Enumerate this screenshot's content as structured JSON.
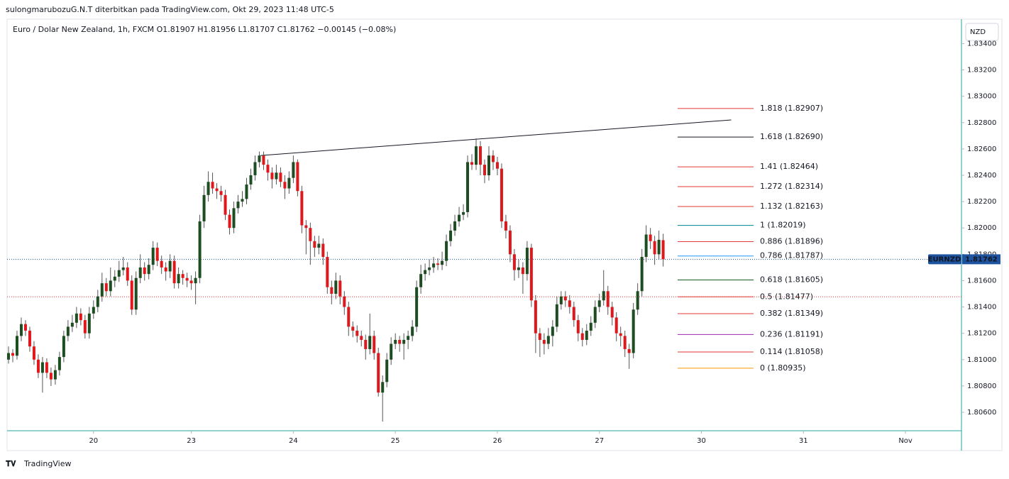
{
  "chart_data": {
    "type": "candlestick",
    "header": "sulongmarubozuG.N.T diterbitkan pada TradingView.com, Okt 29, 2023 11:48 UTC-5",
    "title": "Euro / Dolar New Zealand, 1h, FXCM  O1.81907  H1.81956  L1.81707  C1.81762  −0.00145 (−0.08%)",
    "currency": "NZD",
    "symbol": "EURNZD",
    "brand": "TradingView",
    "up_color": "#1e4d22",
    "down_color": "#e0181b",
    "xlim": [
      -0.333,
      224.17
    ],
    "ylim": [
      1.8046,
      1.8358
    ],
    "xticks": [
      {
        "value": 20,
        "label": "20"
      },
      {
        "value": 43,
        "label": "23"
      },
      {
        "value": 67,
        "label": "24"
      },
      {
        "value": 91,
        "label": "25"
      },
      {
        "value": 115,
        "label": "26"
      },
      {
        "value": 139,
        "label": "27"
      },
      {
        "value": 163,
        "label": "30"
      },
      {
        "value": 187,
        "label": "31"
      },
      {
        "value": 211,
        "label": "Nov"
      }
    ],
    "yticks": [
      {
        "value": 1.834,
        "label": "1.83400"
      },
      {
        "value": 1.832,
        "label": "1.83200"
      },
      {
        "value": 1.83,
        "label": "1.83000"
      },
      {
        "value": 1.828,
        "label": "1.82800"
      },
      {
        "value": 1.826,
        "label": "1.82600"
      },
      {
        "value": 1.824,
        "label": "1.82400"
      },
      {
        "value": 1.822,
        "label": "1.82200"
      },
      {
        "value": 1.82,
        "label": "1.82000"
      },
      {
        "value": 1.818,
        "label": "1.81800"
      },
      {
        "value": 1.816,
        "label": "1.81600"
      },
      {
        "value": 1.814,
        "label": "1.81400"
      },
      {
        "value": 1.812,
        "label": "1.81200"
      },
      {
        "value": 1.81,
        "label": "1.81000"
      },
      {
        "value": 1.808,
        "label": "1.80800"
      },
      {
        "value": 1.806,
        "label": "1.80600"
      }
    ],
    "candles": [
      [
        1.81,
        1.811,
        1.8097,
        1.8105
      ],
      [
        1.8105,
        1.8108,
        1.8098,
        1.8103
      ],
      [
        1.8103,
        1.8122,
        1.81,
        1.8118
      ],
      [
        1.8118,
        1.8132,
        1.8114,
        1.8127
      ],
      [
        1.8127,
        1.813,
        1.8118,
        1.8122
      ],
      [
        1.8122,
        1.8125,
        1.8106,
        1.811
      ],
      [
        1.811,
        1.8114,
        1.8096,
        1.81
      ],
      [
        1.81,
        1.8104,
        1.8086,
        1.809
      ],
      [
        1.809,
        1.8102,
        1.8075,
        1.8098
      ],
      [
        1.8098,
        1.8101,
        1.8086,
        1.809
      ],
      [
        1.809,
        1.8094,
        1.808,
        1.8085
      ],
      [
        1.8085,
        1.8096,
        1.8081,
        1.8092
      ],
      [
        1.8092,
        1.8106,
        1.8088,
        1.8102
      ],
      [
        1.8102,
        1.8122,
        1.8098,
        1.8118
      ],
      [
        1.8118,
        1.813,
        1.8114,
        1.8125
      ],
      [
        1.8125,
        1.8134,
        1.8121,
        1.8128
      ],
      [
        1.8128,
        1.814,
        1.8124,
        1.8135
      ],
      [
        1.8135,
        1.8139,
        1.8126,
        1.813
      ],
      [
        1.813,
        1.8134,
        1.8116,
        1.812
      ],
      [
        1.812,
        1.814,
        1.8116,
        1.8135
      ],
      [
        1.8135,
        1.8145,
        1.8131,
        1.814
      ],
      [
        1.814,
        1.8153,
        1.8136,
        1.8148
      ],
      [
        1.8148,
        1.8166,
        1.8144,
        1.8158
      ],
      [
        1.8158,
        1.8162,
        1.8148,
        1.8152
      ],
      [
        1.8152,
        1.817,
        1.8148,
        1.816
      ],
      [
        1.816,
        1.8168,
        1.8155,
        1.8163
      ],
      [
        1.8163,
        1.8175,
        1.8159,
        1.8168
      ],
      [
        1.8168,
        1.8178,
        1.8164,
        1.817
      ],
      [
        1.817,
        1.8174,
        1.8156,
        1.816
      ],
      [
        1.816,
        1.8164,
        1.8134,
        1.8138
      ],
      [
        1.8138,
        1.8167,
        1.8134,
        1.8162
      ],
      [
        1.8162,
        1.818,
        1.8158,
        1.817
      ],
      [
        1.817,
        1.8174,
        1.816,
        1.8165
      ],
      [
        1.8165,
        1.8177,
        1.8161,
        1.8172
      ],
      [
        1.8172,
        1.819,
        1.8168,
        1.8185
      ],
      [
        1.8185,
        1.8189,
        1.8171,
        1.8175
      ],
      [
        1.8175,
        1.8179,
        1.8165,
        1.817
      ],
      [
        1.817,
        1.8174,
        1.816,
        1.8167
      ],
      [
        1.8167,
        1.818,
        1.8162,
        1.8175
      ],
      [
        1.8175,
        1.8179,
        1.8154,
        1.8158
      ],
      [
        1.8158,
        1.817,
        1.8154,
        1.8165
      ],
      [
        1.8165,
        1.8168,
        1.8157,
        1.8162
      ],
      [
        1.8162,
        1.8166,
        1.8155,
        1.816
      ],
      [
        1.816,
        1.8164,
        1.8153,
        1.8158
      ],
      [
        1.8158,
        1.8167,
        1.8142,
        1.8162
      ],
      [
        1.8162,
        1.821,
        1.8158,
        1.8205
      ],
      [
        1.8205,
        1.8232,
        1.82,
        1.8225
      ],
      [
        1.8225,
        1.8243,
        1.822,
        1.8235
      ],
      [
        1.8235,
        1.8242,
        1.8226,
        1.823
      ],
      [
        1.823,
        1.8234,
        1.8222,
        1.8228
      ],
      [
        1.8228,
        1.8232,
        1.822,
        1.8225
      ],
      [
        1.8225,
        1.8229,
        1.8206,
        1.821
      ],
      [
        1.821,
        1.8214,
        1.8195,
        1.82
      ],
      [
        1.82,
        1.822,
        1.8196,
        1.8215
      ],
      [
        1.8215,
        1.8225,
        1.8211,
        1.822
      ],
      [
        1.822,
        1.8228,
        1.8216,
        1.8222
      ],
      [
        1.8222,
        1.8238,
        1.8218,
        1.8233
      ],
      [
        1.8233,
        1.8245,
        1.8229,
        1.824
      ],
      [
        1.824,
        1.8255,
        1.8236,
        1.825
      ],
      [
        1.825,
        1.8258,
        1.8246,
        1.8255
      ],
      [
        1.8255,
        1.8258,
        1.8244,
        1.8248
      ],
      [
        1.8248,
        1.8252,
        1.8236,
        1.8242
      ],
      [
        1.8242,
        1.8246,
        1.823,
        1.8237
      ],
      [
        1.8237,
        1.8248,
        1.8233,
        1.8242
      ],
      [
        1.8242,
        1.8246,
        1.8231,
        1.8235
      ],
      [
        1.8235,
        1.824,
        1.8222,
        1.823
      ],
      [
        1.823,
        1.8243,
        1.8226,
        1.8238
      ],
      [
        1.8238,
        1.8255,
        1.8234,
        1.825
      ],
      [
        1.825,
        1.8252,
        1.8224,
        1.8228
      ],
      [
        1.8228,
        1.8232,
        1.8196,
        1.8202
      ],
      [
        1.8202,
        1.8206,
        1.818,
        1.82
      ],
      [
        1.82,
        1.8204,
        1.8172,
        1.819
      ],
      [
        1.819,
        1.8194,
        1.8178,
        1.8185
      ],
      [
        1.8185,
        1.8194,
        1.818,
        1.8188
      ],
      [
        1.8188,
        1.8192,
        1.8172,
        1.8178
      ],
      [
        1.8178,
        1.8182,
        1.815,
        1.8155
      ],
      [
        1.8155,
        1.816,
        1.8142,
        1.815
      ],
      [
        1.815,
        1.8166,
        1.8146,
        1.816
      ],
      [
        1.816,
        1.8164,
        1.8142,
        1.8148
      ],
      [
        1.8148,
        1.8152,
        1.8134,
        1.814
      ],
      [
        1.814,
        1.8144,
        1.8118,
        1.8125
      ],
      [
        1.8125,
        1.8129,
        1.8117,
        1.8122
      ],
      [
        1.8122,
        1.8126,
        1.8113,
        1.8118
      ],
      [
        1.8118,
        1.8122,
        1.811,
        1.8115
      ],
      [
        1.8115,
        1.8119,
        1.81,
        1.8108
      ],
      [
        1.8108,
        1.8135,
        1.8104,
        1.8118
      ],
      [
        1.8118,
        1.8122,
        1.81,
        1.8105
      ],
      [
        1.8105,
        1.8109,
        1.8072,
        1.8075
      ],
      [
        1.8075,
        1.8088,
        1.8053,
        1.8083
      ],
      [
        1.8083,
        1.8105,
        1.8079,
        1.81
      ],
      [
        1.81,
        1.8117,
        1.8096,
        1.8112
      ],
      [
        1.8112,
        1.812,
        1.8108,
        1.8115
      ],
      [
        1.8115,
        1.8118,
        1.8106,
        1.8112
      ],
      [
        1.8112,
        1.812,
        1.81,
        1.8115
      ],
      [
        1.8115,
        1.8122,
        1.8108,
        1.8118
      ],
      [
        1.8118,
        1.813,
        1.8114,
        1.8125
      ],
      [
        1.8125,
        1.816,
        1.8121,
        1.8155
      ],
      [
        1.8155,
        1.8172,
        1.815,
        1.8165
      ],
      [
        1.8165,
        1.8173,
        1.816,
        1.8168
      ],
      [
        1.8168,
        1.8176,
        1.8164,
        1.817
      ],
      [
        1.817,
        1.8178,
        1.8166,
        1.8173
      ],
      [
        1.8173,
        1.8177,
        1.8168,
        1.8172
      ],
      [
        1.8172,
        1.8182,
        1.8168,
        1.8175
      ],
      [
        1.8175,
        1.8195,
        1.8171,
        1.819
      ],
      [
        1.819,
        1.8203,
        1.8186,
        1.8198
      ],
      [
        1.8198,
        1.821,
        1.8194,
        1.8205
      ],
      [
        1.8205,
        1.8216,
        1.8201,
        1.821
      ],
      [
        1.821,
        1.8218,
        1.8206,
        1.8212
      ],
      [
        1.8212,
        1.8255,
        1.8208,
        1.825
      ],
      [
        1.825,
        1.8256,
        1.8244,
        1.8248
      ],
      [
        1.8248,
        1.8268,
        1.8244,
        1.8262
      ],
      [
        1.8262,
        1.8266,
        1.824,
        1.8248
      ],
      [
        1.8248,
        1.8252,
        1.8234,
        1.824
      ],
      [
        1.824,
        1.8262,
        1.8236,
        1.8255
      ],
      [
        1.8255,
        1.8259,
        1.8244,
        1.825
      ],
      [
        1.825,
        1.8254,
        1.824,
        1.8245
      ],
      [
        1.8245,
        1.8249,
        1.82,
        1.8205
      ],
      [
        1.8205,
        1.821,
        1.8192,
        1.8198
      ],
      [
        1.8198,
        1.8202,
        1.8174,
        1.818
      ],
      [
        1.818,
        1.8184,
        1.816,
        1.8168
      ],
      [
        1.8168,
        1.8176,
        1.8162,
        1.817
      ],
      [
        1.817,
        1.8174,
        1.815,
        1.8165
      ],
      [
        1.8165,
        1.819,
        1.816,
        1.8185
      ],
      [
        1.8185,
        1.8188,
        1.814,
        1.8145
      ],
      [
        1.8145,
        1.8149,
        1.8105,
        1.812
      ],
      [
        1.812,
        1.8124,
        1.8102,
        1.8115
      ],
      [
        1.8115,
        1.812,
        1.8104,
        1.8112
      ],
      [
        1.8112,
        1.8124,
        1.8108,
        1.8118
      ],
      [
        1.8118,
        1.813,
        1.811,
        1.8125
      ],
      [
        1.8125,
        1.8148,
        1.8121,
        1.8142
      ],
      [
        1.8142,
        1.8152,
        1.8138,
        1.8148
      ],
      [
        1.8148,
        1.8152,
        1.814,
        1.8145
      ],
      [
        1.8145,
        1.8149,
        1.8135,
        1.814
      ],
      [
        1.814,
        1.8144,
        1.8125,
        1.813
      ],
      [
        1.813,
        1.8134,
        1.8114,
        1.812
      ],
      [
        1.812,
        1.8124,
        1.811,
        1.8115
      ],
      [
        1.8115,
        1.8127,
        1.8111,
        1.8122
      ],
      [
        1.8122,
        1.8133,
        1.8118,
        1.8128
      ],
      [
        1.8128,
        1.8145,
        1.8124,
        1.814
      ],
      [
        1.814,
        1.815,
        1.8136,
        1.8145
      ],
      [
        1.8145,
        1.8168,
        1.8141,
        1.8152
      ],
      [
        1.8152,
        1.8156,
        1.8134,
        1.814
      ],
      [
        1.814,
        1.8144,
        1.8126,
        1.8132
      ],
      [
        1.8132,
        1.8136,
        1.8114,
        1.812
      ],
      [
        1.812,
        1.8125,
        1.811,
        1.8118
      ],
      [
        1.8118,
        1.8122,
        1.8102,
        1.8108
      ],
      [
        1.8108,
        1.8112,
        1.8093,
        1.8105
      ],
      [
        1.8105,
        1.8143,
        1.8101,
        1.8138
      ],
      [
        1.8138,
        1.8158,
        1.8134,
        1.8152
      ],
      [
        1.8152,
        1.8184,
        1.8148,
        1.8178
      ],
      [
        1.8178,
        1.8202,
        1.8174,
        1.8195
      ],
      [
        1.8195,
        1.82,
        1.8184,
        1.819
      ],
      [
        1.819,
        1.8194,
        1.8172,
        1.818
      ],
      [
        1.818,
        1.8198,
        1.8176,
        1.8191
      ],
      [
        1.81907,
        1.81956,
        1.81707,
        1.81762
      ]
    ],
    "fib_levels": [
      {
        "label": "1.818 (1.82907)",
        "price": 1.82907,
        "color": "#e53935"
      },
      {
        "label": "1.618 (1.82690)",
        "price": 1.8269,
        "color": "#131722"
      },
      {
        "label": "1.41 (1.82464)",
        "price": 1.82464,
        "color": "#e53935"
      },
      {
        "label": "1.272 (1.82314)",
        "price": 1.82314,
        "color": "#e53935"
      },
      {
        "label": "1.132 (1.82163)",
        "price": 1.82163,
        "color": "#e53935"
      },
      {
        "label": "1 (1.82019)",
        "price": 1.82019,
        "color": "#00838f"
      },
      {
        "label": "0.886 (1.81896)",
        "price": 1.81896,
        "color": "#e53935"
      },
      {
        "label": "0.786 (1.81787)",
        "price": 1.81787,
        "color": "#2196f3"
      },
      {
        "label": "0.618 (1.81605)",
        "price": 1.81605,
        "color": "#1b5e20"
      },
      {
        "label": "0.5 (1.81477)",
        "price": 1.81477,
        "color": "#e53935"
      },
      {
        "label": "0.382 (1.81349)",
        "price": 1.81349,
        "color": "#e53935"
      },
      {
        "label": "0.236 (1.81191)",
        "price": 1.81191,
        "color": "#9c27b0"
      },
      {
        "label": "0.114 (1.81058)",
        "price": 1.81058,
        "color": "#e53935"
      },
      {
        "label": "0 (1.80935)",
        "price": 1.80935,
        "color": "#ff9800"
      }
    ],
    "trend_line": {
      "x": [
        59.3,
        170
      ],
      "y": [
        1.8255,
        1.8282
      ],
      "color": "#131722"
    },
    "price_line": {
      "price": 1.81762,
      "color": "#1e53a0"
    },
    "level_line": {
      "price": 1.81477,
      "color": "#e53935"
    }
  }
}
